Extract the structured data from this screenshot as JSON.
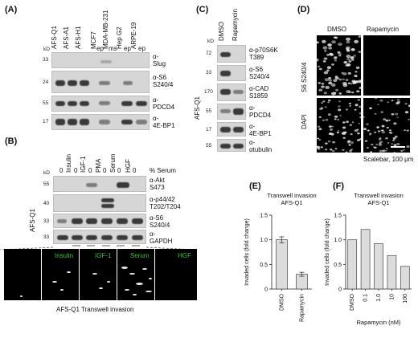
{
  "panels": {
    "A": {
      "letter": "(A)",
      "lanes": [
        "AFS-Q1",
        "AFS-A1",
        "AFS-H1",
        "MCF7",
        "MDA-MB-231",
        "Hep G2",
        "ARPE-19"
      ],
      "sub": [
        "ep",
        "ms",
        "ep",
        "ep"
      ],
      "kd": [
        "33",
        "24",
        "55",
        "17"
      ],
      "kd_label": "kD",
      "rows": [
        "α-\nSlug",
        "α-S6\nS240/4",
        "α-\nPDCD4",
        "α-\n4E-BP1"
      ]
    },
    "B": {
      "letter": "(B)",
      "treatments": [
        "Insulin",
        "IGF-1",
        "PMA",
        "Serum",
        "HGF"
      ],
      "serum": [
        "0",
        "0",
        "0",
        "0",
        "0",
        "0"
      ],
      "serum_label": "% Serum",
      "kd": [
        "55",
        "40",
        "33",
        "33"
      ],
      "kd_label": "kD",
      "rows": [
        "α-Akt\nS473",
        "α-p44/42\nT202/T204",
        "α-S6\nS240/4",
        "α-\nGAPDH"
      ],
      "side": "AFS-Q1",
      "micro_labels": [
        "Insulin",
        "IGF-1",
        "Serum",
        "HGF"
      ],
      "micro_caption": "AFS-Q1 Transwell invasion"
    },
    "C": {
      "letter": "(C)",
      "lanes": [
        "DMSO",
        "Rapamycin"
      ],
      "kd": [
        "72",
        "33",
        "170",
        "55",
        "17",
        "55"
      ],
      "kd_label": "kD",
      "rows": [
        "α-p70S6K\nT389",
        "α-S6\nS240/4",
        "α-CAD\nS1859",
        "α-\nPDCD4",
        "α-\n4E-BP1",
        "α-\nαtubulin"
      ],
      "side": "AFS-Q1"
    },
    "D": {
      "letter": "(D)",
      "cols": [
        "DMSO",
        "Rapamycin"
      ],
      "rows": [
        "S6 S240/4",
        "DAPI"
      ],
      "scalebar": "Scalebar, 100 μm"
    },
    "E": {
      "letter": "(E)"
    },
    "F": {
      "letter": "(F)"
    }
  },
  "chart_data": [
    {
      "type": "bar",
      "title": "Transwell invasion\nAFS-Q1",
      "categories": [
        "DMSO",
        "Rapamycin"
      ],
      "values": [
        1.0,
        0.3
      ],
      "errors": [
        0.06,
        0.04
      ],
      "ylabel": "Invaded cells (fold change)",
      "xlabel": "",
      "ylim": [
        0,
        1.5
      ],
      "yticks": [
        "0",
        "0.5",
        "1.0",
        "1.5"
      ]
    },
    {
      "type": "bar",
      "title": "Transwell invasion\nAFS-Q1",
      "categories": [
        "DMSO",
        "0.1",
        "1.0",
        "10",
        "100"
      ],
      "values": [
        1.0,
        1.21,
        0.92,
        0.68,
        0.46
      ],
      "ylabel": "Invaded cells (fold change)",
      "xlabel": "Rapamycin (nM)",
      "ylim": [
        0,
        1.5
      ],
      "yticks": [
        "0",
        "0.5",
        "1.0",
        "1.5"
      ]
    }
  ]
}
